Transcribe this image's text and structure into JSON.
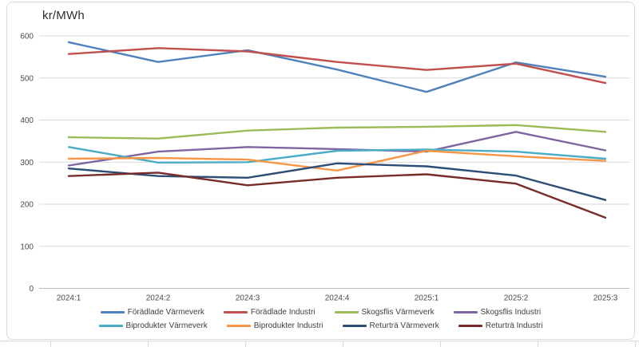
{
  "chart_data": {
    "type": "line",
    "title": "kr/MWh",
    "xlabel": "",
    "ylabel": "kr/MWh",
    "categories": [
      "2024:1",
      "2024:2",
      "2024:3",
      "2024:4",
      "2025:1",
      "2025:2",
      "2025:3"
    ],
    "series": [
      {
        "name": "Förädlade Värmeverk",
        "color": "#4F81BD",
        "values": [
          585,
          538,
          566,
          520,
          467,
          537,
          503
        ]
      },
      {
        "name": "Förädlade Industri",
        "color": "#C0504D",
        "values": [
          557,
          571,
          563,
          538,
          519,
          534,
          488
        ]
      },
      {
        "name": "Skogsflis Värmeverk",
        "color": "#9BBB59",
        "values": [
          359,
          356,
          375,
          382,
          384,
          388,
          372
        ]
      },
      {
        "name": "Skogsflis Industri",
        "color": "#8064A2",
        "values": [
          292,
          325,
          336,
          331,
          325,
          372,
          328
        ]
      },
      {
        "name": "Biprodukter Värmeverk",
        "color": "#4BACC6",
        "values": [
          336,
          299,
          300,
          327,
          330,
          325,
          308
        ]
      },
      {
        "name": "Biprodukter Industri",
        "color": "#F79646",
        "values": [
          308,
          310,
          306,
          280,
          327,
          314,
          303
        ]
      },
      {
        "name": "Returträ Värmeverk",
        "color": "#2C4D75",
        "values": [
          285,
          267,
          263,
          297,
          290,
          268,
          210
        ]
      },
      {
        "name": "Returträ Industri",
        "color": "#772C2A",
        "values": [
          267,
          275,
          245,
          263,
          271,
          249,
          168
        ]
      }
    ],
    "ylim": [
      0,
      600
    ],
    "yticks": [
      0,
      100,
      200,
      300,
      400,
      500,
      600
    ],
    "grid": true,
    "legend_position": "bottom",
    "legend_rows": [
      [
        0,
        1,
        2,
        3
      ],
      [
        4,
        5,
        6,
        7
      ]
    ],
    "colors": {
      "gridline": "#D9D9D9",
      "axis_line": "#BFBFBF",
      "tick_text": "#4a4a4a",
      "legend_text": "#3f3f3f"
    }
  }
}
